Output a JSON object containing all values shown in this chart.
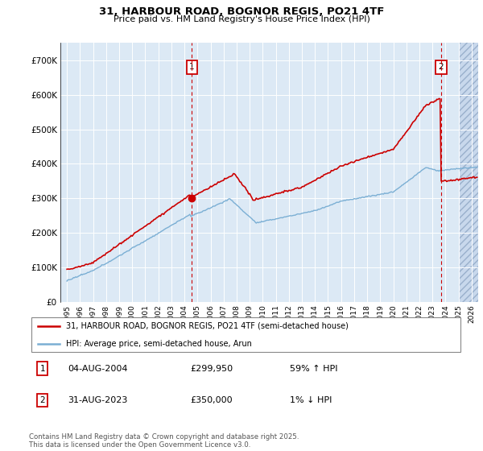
{
  "title_line1": "31, HARBOUR ROAD, BOGNOR REGIS, PO21 4TF",
  "title_line2": "Price paid vs. HM Land Registry's House Price Index (HPI)",
  "ylim": [
    0,
    750000
  ],
  "xlim_start": 1994.5,
  "xlim_end": 2026.5,
  "plot_bg_color": "#dce9f5",
  "grid_color": "#ffffff",
  "red_line_color": "#cc0000",
  "blue_line_color": "#7bafd4",
  "legend_label_red": "31, HARBOUR ROAD, BOGNOR REGIS, PO21 4TF (semi-detached house)",
  "legend_label_blue": "HPI: Average price, semi-detached house, Arun",
  "sale1_date": "04-AUG-2004",
  "sale1_price": "£299,950",
  "sale1_hpi": "59% ↑ HPI",
  "sale2_date": "31-AUG-2023",
  "sale2_price": "£350,000",
  "sale2_hpi": "1% ↓ HPI",
  "footnote": "Contains HM Land Registry data © Crown copyright and database right 2025.\nThis data is licensed under the Open Government Licence v3.0.",
  "yticks": [
    0,
    100000,
    200000,
    300000,
    400000,
    500000,
    600000,
    700000
  ],
  "ytick_labels": [
    "£0",
    "£100K",
    "£200K",
    "£300K",
    "£400K",
    "£500K",
    "£600K",
    "£700K"
  ],
  "xticks": [
    1995,
    1996,
    1997,
    1998,
    1999,
    2000,
    2001,
    2002,
    2003,
    2004,
    2005,
    2006,
    2007,
    2008,
    2009,
    2010,
    2011,
    2012,
    2013,
    2014,
    2015,
    2016,
    2017,
    2018,
    2019,
    2020,
    2021,
    2022,
    2023,
    2024,
    2025,
    2026
  ],
  "sale1_x": 2004.58,
  "sale1_y": 299950,
  "sale2_x": 2023.66,
  "sale2_y": 350000,
  "hatch_start": 2025.0
}
